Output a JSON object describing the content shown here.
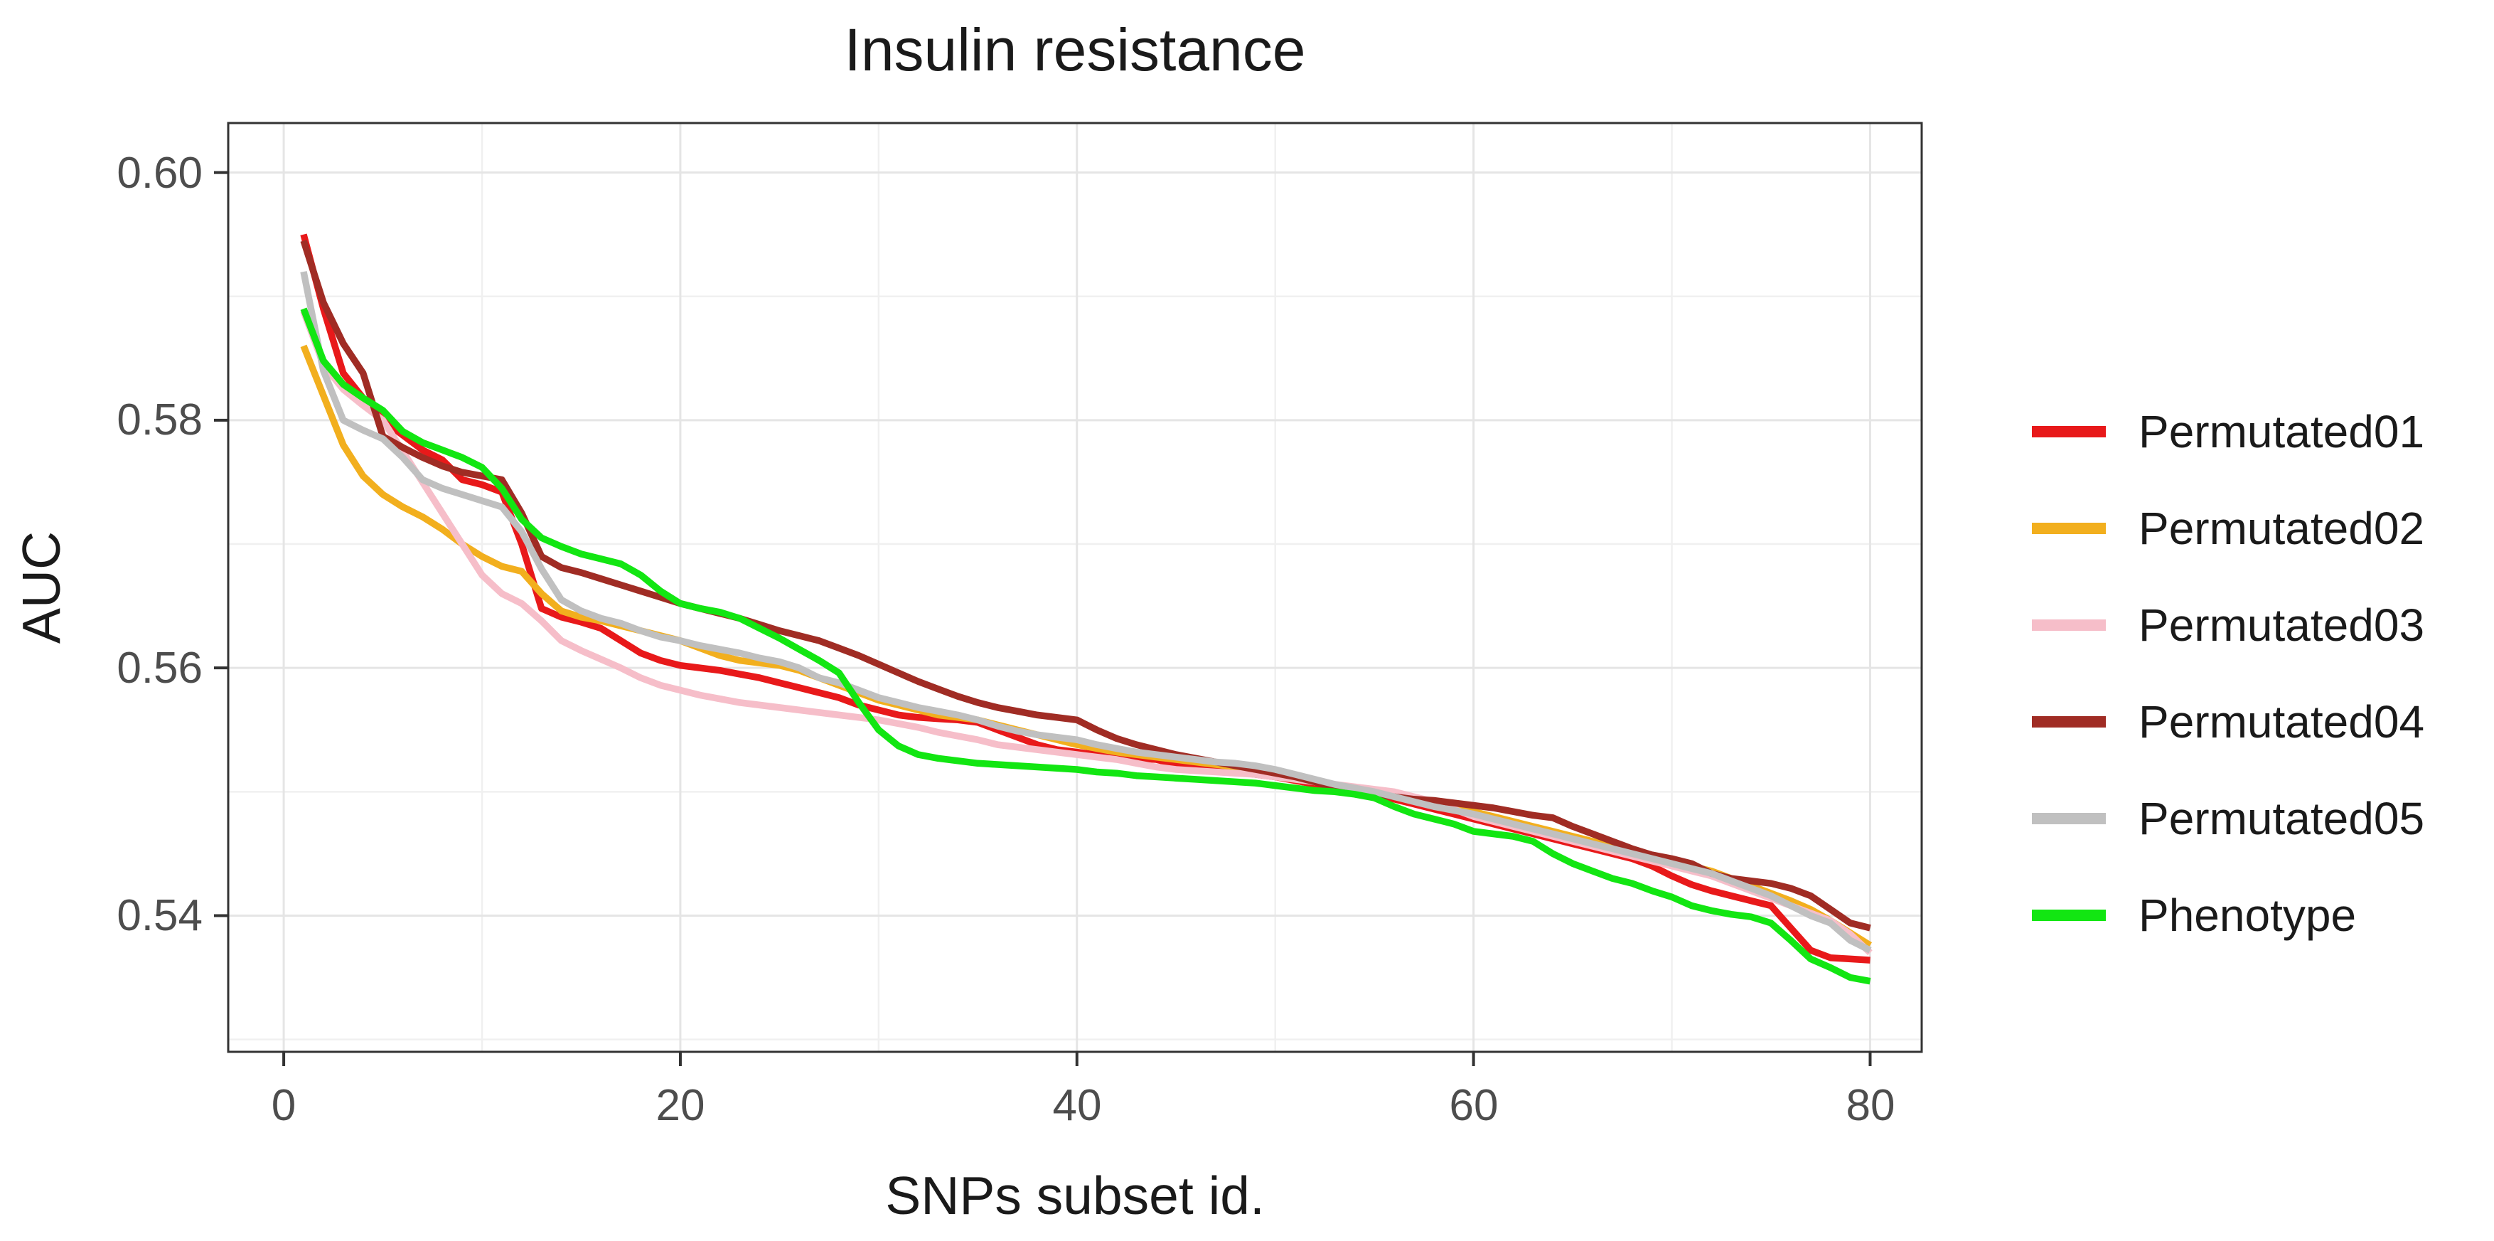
{
  "chart_data": {
    "type": "line",
    "title": "Insulin resistance",
    "xlabel": "SNPs subset id.",
    "ylabel": "AUC",
    "x_ticks": [
      0,
      20,
      40,
      60,
      80
    ],
    "x_tick_labels": [
      "0",
      "20",
      "40",
      "60",
      "80"
    ],
    "x_minor_ticks": [
      10,
      30,
      50,
      70
    ],
    "y_ticks": [
      0.6,
      0.58,
      0.56,
      0.54
    ],
    "y_tick_labels": [
      "0.60",
      "0.58",
      "0.56",
      "0.54"
    ],
    "y_minor_ticks": [
      0.59,
      0.57,
      0.55,
      0.53
    ],
    "xlim": [
      -2.8,
      82.6
    ],
    "ylim": [
      0.529,
      0.604
    ],
    "grid": "on",
    "legend_position": "right",
    "x": [
      1,
      2,
      3,
      4,
      5,
      6,
      7,
      8,
      9,
      10,
      11,
      12,
      13,
      14,
      15,
      16,
      17,
      18,
      19,
      20,
      21,
      22,
      23,
      24,
      25,
      26,
      27,
      28,
      29,
      30,
      31,
      32,
      33,
      34,
      35,
      36,
      37,
      38,
      39,
      40,
      41,
      42,
      43,
      44,
      45,
      46,
      47,
      48,
      49,
      50,
      51,
      52,
      53,
      54,
      55,
      56,
      57,
      58,
      59,
      60,
      61,
      62,
      63,
      64,
      65,
      66,
      67,
      68,
      69,
      70,
      71,
      72,
      73,
      74,
      75,
      76,
      77,
      78,
      79,
      80
    ],
    "series": [
      {
        "name": "Permutated01",
        "color": "#E8191A",
        "values": [
          0.595,
          0.589,
          0.5838,
          0.5818,
          0.58,
          0.5788,
          0.5776,
          0.5768,
          0.5752,
          0.5748,
          0.5742,
          0.57,
          0.5648,
          0.5641,
          0.5637,
          0.5632,
          0.5622,
          0.5612,
          0.5606,
          0.5602,
          0.56,
          0.5598,
          0.5595,
          0.5592,
          0.5588,
          0.5584,
          0.558,
          0.5576,
          0.557,
          0.5566,
          0.5562,
          0.556,
          0.5559,
          0.5558,
          0.5556,
          0.555,
          0.5544,
          0.5538,
          0.5534,
          0.5532,
          0.553,
          0.5528,
          0.5527,
          0.5526,
          0.5522,
          0.552,
          0.5518,
          0.5516,
          0.5514,
          0.5512,
          0.5509,
          0.5506,
          0.5502,
          0.55,
          0.5497,
          0.5494,
          0.549,
          0.5486,
          0.5482,
          0.5478,
          0.5474,
          0.547,
          0.5466,
          0.5462,
          0.5458,
          0.5454,
          0.545,
          0.5446,
          0.544,
          0.5432,
          0.5425,
          0.542,
          0.5416,
          0.5412,
          0.5408,
          0.539,
          0.5372,
          0.5366,
          0.5365,
          0.5364
        ]
      },
      {
        "name": "Permutated02",
        "color": "#F2AF1E",
        "values": [
          0.586,
          0.582,
          0.578,
          0.5755,
          0.574,
          0.573,
          0.5722,
          0.5712,
          0.57,
          0.569,
          0.5682,
          0.5678,
          0.566,
          0.5646,
          0.5641,
          0.5638,
          0.5634,
          0.563,
          0.5626,
          0.5622,
          0.5616,
          0.561,
          0.5606,
          0.5604,
          0.5602,
          0.5598,
          0.5592,
          0.5586,
          0.558,
          0.5574,
          0.557,
          0.5566,
          0.5562,
          0.556,
          0.5558,
          0.5554,
          0.555,
          0.5546,
          0.5542,
          0.5538,
          0.5535,
          0.5532,
          0.553,
          0.5528,
          0.5526,
          0.5524,
          0.5522,
          0.552,
          0.5518,
          0.5516,
          0.5512,
          0.5508,
          0.5505,
          0.5502,
          0.5499,
          0.5496,
          0.5493,
          0.549,
          0.5487,
          0.5484,
          0.548,
          0.5476,
          0.5472,
          0.5468,
          0.5464,
          0.546,
          0.5456,
          0.5452,
          0.5448,
          0.5444,
          0.544,
          0.5436,
          0.543,
          0.5424,
          0.5418,
          0.5412,
          0.5405,
          0.5396,
          0.5386,
          0.5376
        ]
      },
      {
        "name": "Permutated03",
        "color": "#F6BEC9",
        "values": [
          0.5888,
          0.5845,
          0.5825,
          0.5812,
          0.58,
          0.5775,
          0.575,
          0.5725,
          0.57,
          0.5675,
          0.566,
          0.5652,
          0.5638,
          0.5622,
          0.5614,
          0.5607,
          0.56,
          0.5592,
          0.5586,
          0.5582,
          0.5578,
          0.5575,
          0.5572,
          0.557,
          0.5568,
          0.5566,
          0.5564,
          0.5562,
          0.556,
          0.5558,
          0.5555,
          0.5552,
          0.5548,
          0.5545,
          0.5542,
          0.5538,
          0.5536,
          0.5534,
          0.5532,
          0.553,
          0.5528,
          0.5526,
          0.5523,
          0.552,
          0.5518,
          0.5517,
          0.5516,
          0.5515,
          0.5514,
          0.5512,
          0.551,
          0.5508,
          0.5506,
          0.5504,
          0.5502,
          0.55,
          0.5496,
          0.5492,
          0.5486,
          0.548,
          0.5476,
          0.5472,
          0.5468,
          0.5464,
          0.546,
          0.5456,
          0.5452,
          0.5448,
          0.5444,
          0.544,
          0.5436,
          0.5432,
          0.5426,
          0.542,
          0.5414,
          0.5408,
          0.5402,
          0.5396,
          0.5385,
          0.537
        ]
      },
      {
        "name": "Permutated04",
        "color": "#A02C24",
        "values": [
          0.5945,
          0.5895,
          0.5862,
          0.5838,
          0.5787,
          0.5778,
          0.577,
          0.5763,
          0.5758,
          0.5755,
          0.5752,
          0.5725,
          0.569,
          0.5681,
          0.5677,
          0.5672,
          0.5667,
          0.5662,
          0.5657,
          0.5652,
          0.5648,
          0.5644,
          0.564,
          0.5635,
          0.563,
          0.5626,
          0.5622,
          0.5616,
          0.561,
          0.5603,
          0.5596,
          0.5589,
          0.5583,
          0.5577,
          0.5572,
          0.5568,
          0.5565,
          0.5562,
          0.556,
          0.5558,
          0.555,
          0.5543,
          0.5538,
          0.5534,
          0.553,
          0.5527,
          0.5524,
          0.5521,
          0.5518,
          0.5515,
          0.5512,
          0.5508,
          0.5503,
          0.55,
          0.5498,
          0.5496,
          0.5494,
          0.5493,
          0.5491,
          0.5489,
          0.5487,
          0.5484,
          0.5481,
          0.5479,
          0.5472,
          0.5466,
          0.546,
          0.5454,
          0.5449,
          0.5446,
          0.5442,
          0.5434,
          0.543,
          0.5428,
          0.5426,
          0.5422,
          0.5416,
          0.5405,
          0.5394,
          0.539
        ]
      },
      {
        "name": "Permutated05",
        "color": "#C0C0C0",
        "values": [
          0.592,
          0.584,
          0.58,
          0.5792,
          0.5785,
          0.577,
          0.5752,
          0.5745,
          0.574,
          0.5735,
          0.573,
          0.571,
          0.568,
          0.5655,
          0.5646,
          0.564,
          0.5636,
          0.563,
          0.5625,
          0.5622,
          0.5618,
          0.5615,
          0.5612,
          0.5608,
          0.5605,
          0.56,
          0.5592,
          0.5588,
          0.5582,
          0.5576,
          0.5572,
          0.5568,
          0.5565,
          0.5562,
          0.5558,
          0.5553,
          0.5549,
          0.5546,
          0.5544,
          0.5542,
          0.5538,
          0.5535,
          0.5532,
          0.553,
          0.5528,
          0.5526,
          0.5524,
          0.5523,
          0.5521,
          0.5518,
          0.5514,
          0.551,
          0.5506,
          0.5503,
          0.55,
          0.5496,
          0.5492,
          0.5488,
          0.5485,
          0.5482,
          0.5478,
          0.5474,
          0.547,
          0.5466,
          0.5462,
          0.5458,
          0.5454,
          0.545,
          0.5446,
          0.5442,
          0.5438,
          0.5434,
          0.5428,
          0.5422,
          0.5416,
          0.5408,
          0.54,
          0.5394,
          0.538,
          0.5372
        ]
      },
      {
        "name": "Phenotype",
        "color": "#12E612",
        "values": [
          0.589,
          0.5848,
          0.5829,
          0.5818,
          0.5808,
          0.5791,
          0.5782,
          0.5776,
          0.577,
          0.5762,
          0.5745,
          0.572,
          0.5705,
          0.5698,
          0.5692,
          0.5688,
          0.5684,
          0.5675,
          0.5662,
          0.5652,
          0.5648,
          0.5645,
          0.564,
          0.5632,
          0.5624,
          0.5615,
          0.5606,
          0.5596,
          0.5572,
          0.555,
          0.5537,
          0.553,
          0.5527,
          0.5525,
          0.5523,
          0.5522,
          0.5521,
          0.552,
          0.5519,
          0.5518,
          0.5516,
          0.5515,
          0.5513,
          0.5512,
          0.5511,
          0.551,
          0.5509,
          0.5508,
          0.5507,
          0.5505,
          0.5503,
          0.5501,
          0.55,
          0.5498,
          0.5495,
          0.5488,
          0.5482,
          0.5478,
          0.5474,
          0.5468,
          0.5466,
          0.5464,
          0.546,
          0.545,
          0.5442,
          0.5436,
          0.543,
          0.5426,
          0.542,
          0.5415,
          0.5408,
          0.5404,
          0.5401,
          0.5399,
          0.5394,
          0.538,
          0.5365,
          0.5358,
          0.535,
          0.5347
        ]
      }
    ],
    "style": {
      "panel_border_color": "#333333",
      "major_grid_color": "#E5E5E5",
      "minor_grid_color": "#F0F0F0",
      "tick_color": "#333333",
      "tick_label_color": "#4d4d4d",
      "line_width": 9.5
    }
  }
}
